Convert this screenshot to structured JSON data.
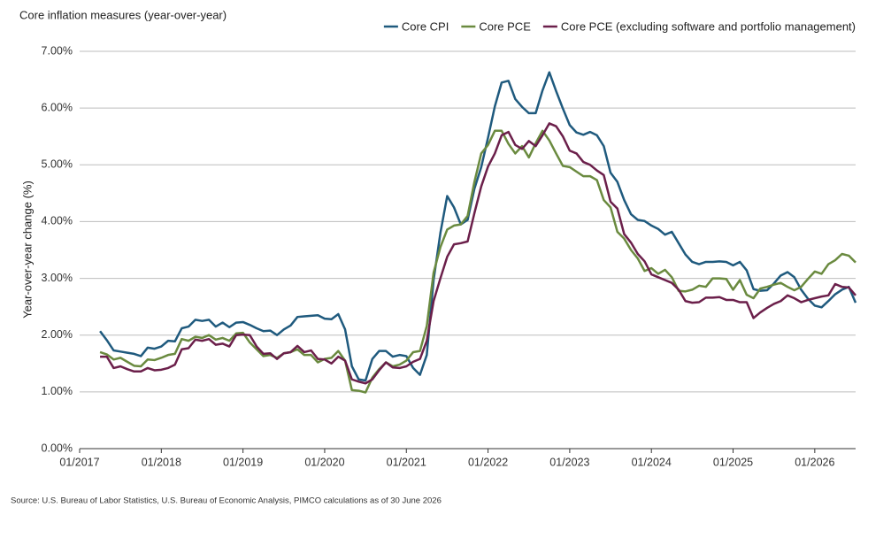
{
  "chart_data": {
    "type": "line",
    "title": "Core inflation measures (year-over-year)",
    "y_label": "Year-over-year change (%)",
    "source": "Source: U.S. Bureau of Labor Statistics, U.S. Bureau of Economic Analysis, PIMCO calculations as of 30 June 2026",
    "x": [
      "04/2017",
      "05/2017",
      "06/2017",
      "07/2017",
      "08/2017",
      "09/2017",
      "10/2017",
      "11/2017",
      "12/2017",
      "01/2018",
      "02/2018",
      "03/2018",
      "04/2018",
      "05/2018",
      "06/2018",
      "07/2018",
      "08/2018",
      "09/2018",
      "10/2018",
      "11/2018",
      "12/2018",
      "01/2019",
      "02/2019",
      "03/2019",
      "04/2019",
      "05/2019",
      "06/2019",
      "07/2019",
      "08/2019",
      "09/2019",
      "10/2019",
      "11/2019",
      "12/2019",
      "01/2020",
      "02/2020",
      "03/2020",
      "04/2020",
      "05/2020",
      "06/2020",
      "07/2020",
      "08/2020",
      "09/2020",
      "10/2020",
      "11/2020",
      "12/2020",
      "01/2021",
      "02/2021",
      "03/2021",
      "04/2021",
      "05/2021",
      "06/2021",
      "07/2021",
      "08/2021",
      "09/2021",
      "10/2021",
      "11/2021",
      "12/2021",
      "01/2022",
      "02/2022",
      "03/2022",
      "04/2022",
      "05/2022",
      "06/2022",
      "07/2022",
      "08/2022",
      "09/2022",
      "10/2022",
      "11/2022",
      "12/2022",
      "01/2023",
      "02/2023",
      "03/2023",
      "04/2023",
      "05/2023",
      "06/2023",
      "07/2023",
      "08/2023",
      "09/2023",
      "10/2023",
      "11/2023",
      "12/2023",
      "01/2024",
      "02/2024",
      "03/2024",
      "04/2024",
      "05/2024",
      "06/2024",
      "07/2024",
      "08/2024",
      "09/2024",
      "10/2024",
      "11/2024",
      "12/2024",
      "01/2025",
      "02/2025",
      "03/2025",
      "04/2025",
      "05/2025",
      "06/2025",
      "07/2025",
      "08/2025",
      "09/2025",
      "10/2025",
      "11/2025",
      "12/2025",
      "01/2026",
      "02/2026",
      "03/2026",
      "04/2026",
      "05/2026",
      "06/2026",
      "07/2026"
    ],
    "series": [
      {
        "name": "Core CPI",
        "color": "#1f5a7e",
        "values": [
          2.07,
          1.91,
          1.73,
          1.71,
          1.69,
          1.67,
          1.63,
          1.78,
          1.76,
          1.8,
          1.9,
          1.89,
          2.12,
          2.15,
          2.27,
          2.25,
          2.27,
          2.15,
          2.22,
          2.14,
          2.22,
          2.23,
          2.18,
          2.12,
          2.07,
          2.08,
          2.0,
          2.1,
          2.17,
          2.32,
          2.33,
          2.34,
          2.35,
          2.29,
          2.28,
          2.37,
          2.1,
          1.45,
          1.22,
          1.2,
          1.58,
          1.72,
          1.72,
          1.62,
          1.65,
          1.63,
          1.42,
          1.3,
          1.65,
          2.97,
          3.8,
          4.45,
          4.25,
          3.95,
          4.03,
          4.58,
          4.96,
          5.48,
          6.03,
          6.45,
          6.48,
          6.16,
          6.02,
          5.91,
          5.91,
          6.31,
          6.63,
          6.3,
          5.99,
          5.7,
          5.57,
          5.53,
          5.58,
          5.52,
          5.33,
          4.86,
          4.7,
          4.38,
          4.13,
          4.03,
          4.01,
          3.93,
          3.87,
          3.77,
          3.82,
          3.62,
          3.42,
          3.29,
          3.25,
          3.29,
          3.29,
          3.3,
          3.29,
          3.23,
          3.29,
          3.14,
          2.81,
          2.78,
          2.79,
          2.91,
          3.05,
          3.11,
          3.02,
          2.8,
          2.64,
          2.52,
          2.49,
          2.6,
          2.72,
          2.8,
          2.85,
          2.57
        ]
      },
      {
        "name": "Core PCE",
        "color": "#6a8a3f",
        "values": [
          1.7,
          1.66,
          1.57,
          1.6,
          1.53,
          1.46,
          1.45,
          1.57,
          1.56,
          1.6,
          1.65,
          1.67,
          1.93,
          1.9,
          1.97,
          1.95,
          2.0,
          1.92,
          1.95,
          1.9,
          2.03,
          2.04,
          1.87,
          1.75,
          1.63,
          1.65,
          1.6,
          1.68,
          1.7,
          1.75,
          1.65,
          1.65,
          1.52,
          1.58,
          1.6,
          1.72,
          1.55,
          1.03,
          1.02,
          0.99,
          1.25,
          1.4,
          1.52,
          1.45,
          1.48,
          1.55,
          1.7,
          1.72,
          2.16,
          3.1,
          3.55,
          3.86,
          3.93,
          3.95,
          4.1,
          4.7,
          5.2,
          5.35,
          5.6,
          5.6,
          5.37,
          5.2,
          5.33,
          5.13,
          5.38,
          5.6,
          5.43,
          5.2,
          4.98,
          4.96,
          4.88,
          4.8,
          4.8,
          4.73,
          4.38,
          4.25,
          3.82,
          3.7,
          3.5,
          3.35,
          3.13,
          3.18,
          3.08,
          3.15,
          3.02,
          2.78,
          2.77,
          2.8,
          2.87,
          2.85,
          3.0,
          3.0,
          2.99,
          2.8,
          2.97,
          2.71,
          2.65,
          2.82,
          2.85,
          2.89,
          2.92,
          2.85,
          2.79,
          2.85,
          2.99,
          3.12,
          3.08,
          3.25,
          3.32,
          3.43,
          3.4,
          3.28
        ]
      },
      {
        "name": "Core PCE (excluding software and portfolio management)",
        "color": "#6b1f4a",
        "values": [
          1.62,
          1.62,
          1.42,
          1.45,
          1.4,
          1.36,
          1.36,
          1.42,
          1.38,
          1.39,
          1.42,
          1.48,
          1.75,
          1.77,
          1.92,
          1.9,
          1.93,
          1.83,
          1.85,
          1.8,
          2.0,
          2.01,
          2.0,
          1.8,
          1.67,
          1.68,
          1.58,
          1.68,
          1.7,
          1.81,
          1.7,
          1.73,
          1.58,
          1.57,
          1.5,
          1.62,
          1.55,
          1.22,
          1.18,
          1.15,
          1.22,
          1.38,
          1.52,
          1.43,
          1.42,
          1.45,
          1.53,
          1.58,
          1.9,
          2.6,
          3.0,
          3.38,
          3.6,
          3.62,
          3.65,
          4.15,
          4.62,
          4.97,
          5.2,
          5.52,
          5.58,
          5.35,
          5.28,
          5.42,
          5.33,
          5.52,
          5.73,
          5.68,
          5.5,
          5.25,
          5.2,
          5.05,
          5.0,
          4.9,
          4.82,
          4.35,
          4.23,
          3.78,
          3.63,
          3.43,
          3.3,
          3.07,
          3.02,
          2.97,
          2.92,
          2.8,
          2.6,
          2.57,
          2.58,
          2.66,
          2.66,
          2.67,
          2.62,
          2.62,
          2.58,
          2.58,
          2.3,
          2.4,
          2.48,
          2.55,
          2.6,
          2.7,
          2.65,
          2.58,
          2.62,
          2.65,
          2.68,
          2.7,
          2.9,
          2.85,
          2.84,
          2.7
        ]
      }
    ],
    "xlim": [
      "01/2017",
      "07/2026"
    ],
    "xticks": [
      "01/2017",
      "01/2018",
      "01/2019",
      "01/2020",
      "01/2021",
      "01/2022",
      "01/2023",
      "01/2024",
      "01/2025",
      "01/2026"
    ],
    "ylim": [
      0,
      7
    ],
    "yticks": [
      {
        "value": 0,
        "label": "0.00%"
      },
      {
        "value": 1,
        "label": "1.00%"
      },
      {
        "value": 2,
        "label": "2.00%"
      },
      {
        "value": 3,
        "label": "3.00%"
      },
      {
        "value": 4,
        "label": "4.00%"
      },
      {
        "value": 5,
        "label": "5.00%"
      },
      {
        "value": 6,
        "label": "6.00%"
      },
      {
        "value": 7,
        "label": "7.00%"
      }
    ],
    "grid": true,
    "legend": "top-right"
  }
}
